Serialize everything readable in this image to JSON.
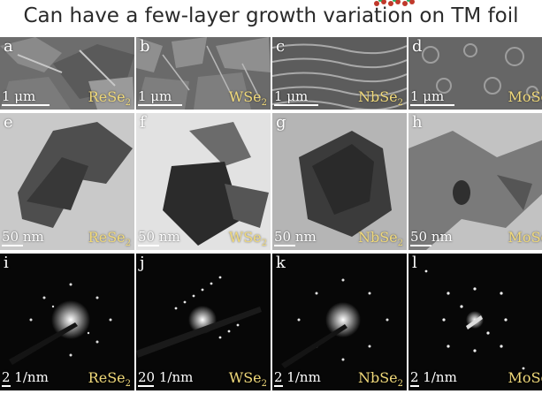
{
  "title": "Can have a few-layer growth variation on TM foil",
  "rows": [
    {
      "kind": "SEM",
      "panels": [
        {
          "letter": "a",
          "scale": "1 μm",
          "material": "ReSe",
          "sub": "2"
        },
        {
          "letter": "b",
          "scale": "1 μm",
          "material": "WSe",
          "sub": "2"
        },
        {
          "letter": "c",
          "scale": "1 μm",
          "material": "NbSe",
          "sub": "2"
        },
        {
          "letter": "d",
          "scale": "1 μm",
          "material": "MoSe",
          "sub": ""
        }
      ]
    },
    {
      "kind": "TEM",
      "panels": [
        {
          "letter": "e",
          "scale": "50 nm",
          "material": "ReSe",
          "sub": "2"
        },
        {
          "letter": "f",
          "scale": "50 nm",
          "material": "WSe",
          "sub": "2"
        },
        {
          "letter": "g",
          "scale": "50 nm",
          "material": "NbSe",
          "sub": "2"
        },
        {
          "letter": "h",
          "scale": "50 nm",
          "material": "MoSe",
          "sub": ""
        }
      ]
    },
    {
      "kind": "SAED",
      "panels": [
        {
          "letter": "i",
          "scale": "2 1/nm",
          "material": "ReSe",
          "sub": "2"
        },
        {
          "letter": "j",
          "scale": "20 1/nm",
          "material": "WSe",
          "sub": "2"
        },
        {
          "letter": "k",
          "scale": "2 1/nm",
          "material": "NbSe",
          "sub": "2"
        },
        {
          "letter": "l",
          "scale": "2 1/nm",
          "material": "MoSe",
          "sub": ""
        }
      ]
    }
  ],
  "colors": {
    "label_material": "#f0d97a",
    "label_white": "#ffffff"
  }
}
